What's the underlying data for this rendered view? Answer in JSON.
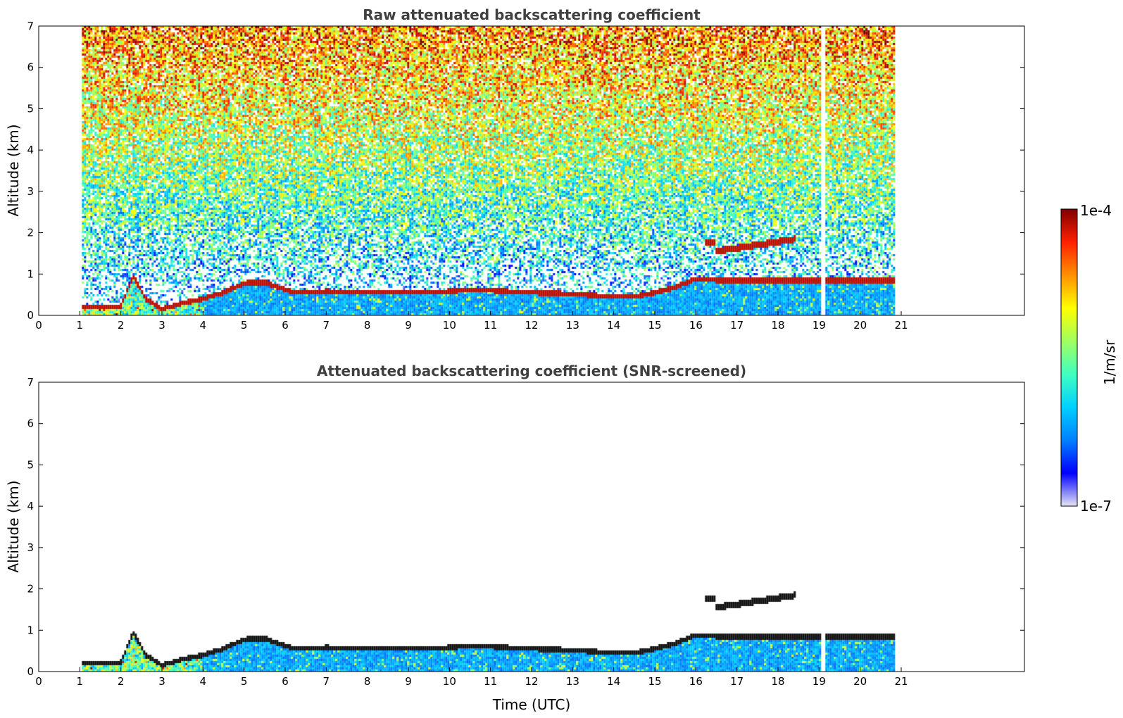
{
  "chart_data": [
    {
      "type": "heatmap",
      "title": "Raw attenuated backscattering coefficient",
      "xlabel": "",
      "ylabel": "Altitude (km)",
      "xlim": [
        0,
        24
      ],
      "ylim": [
        0,
        7
      ],
      "xticks": [
        0,
        1,
        2,
        3,
        4,
        5,
        6,
        7,
        8,
        9,
        10,
        11,
        12,
        13,
        14,
        15,
        16,
        17,
        18,
        19,
        20,
        21
      ],
      "yticks": [
        0,
        1,
        2,
        3,
        4,
        5,
        6,
        7
      ],
      "data_extent": {
        "t_start": 1.05,
        "t_end": 20.8
      },
      "gap_time": 19.1,
      "boundary_layer_top_km": [
        [
          1.05,
          0.22
        ],
        [
          1.5,
          0.2
        ],
        [
          2.0,
          0.22
        ],
        [
          2.3,
          0.95
        ],
        [
          2.6,
          0.4
        ],
        [
          3.0,
          0.15
        ],
        [
          3.5,
          0.3
        ],
        [
          4.0,
          0.4
        ],
        [
          4.5,
          0.55
        ],
        [
          5.0,
          0.78
        ],
        [
          5.5,
          0.8
        ],
        [
          5.8,
          0.7
        ],
        [
          6.2,
          0.55
        ],
        [
          7.0,
          0.58
        ],
        [
          8.0,
          0.55
        ],
        [
          9.0,
          0.55
        ],
        [
          10.0,
          0.58
        ],
        [
          10.5,
          0.62
        ],
        [
          11.0,
          0.6
        ],
        [
          12.0,
          0.55
        ],
        [
          13.0,
          0.52
        ],
        [
          14.0,
          0.45
        ],
        [
          14.5,
          0.45
        ],
        [
          15.0,
          0.55
        ],
        [
          15.5,
          0.68
        ],
        [
          16.0,
          0.88
        ],
        [
          16.5,
          0.85
        ]
      ],
      "elevated_layers": [
        {
          "t_start": 16.2,
          "t_end": 16.5,
          "alt_km": 1.78
        },
        {
          "t_start": 16.5,
          "t_end": 18.45,
          "alt_start_km": 1.55,
          "alt_end_km": 1.85
        }
      ]
    },
    {
      "type": "heatmap",
      "title": "Attenuated backscattering coefficient (SNR-screened)",
      "xlabel": "Time (UTC)",
      "ylabel": "Altitude (km)",
      "xlim": [
        0,
        24
      ],
      "ylim": [
        0,
        7
      ],
      "xticks": [
        0,
        1,
        2,
        3,
        4,
        5,
        6,
        7,
        8,
        9,
        10,
        11,
        12,
        13,
        14,
        15,
        16,
        17,
        18,
        19,
        20,
        21
      ],
      "yticks": [
        0,
        1,
        2,
        3,
        4,
        5,
        6,
        7
      ],
      "data_extent": {
        "t_start": 1.05,
        "t_end": 20.8
      },
      "gap_time": 19.1,
      "boundary_layer_top_km": [
        [
          1.05,
          0.22
        ],
        [
          1.5,
          0.2
        ],
        [
          2.0,
          0.22
        ],
        [
          2.3,
          0.95
        ],
        [
          2.6,
          0.4
        ],
        [
          3.0,
          0.15
        ],
        [
          3.5,
          0.3
        ],
        [
          4.0,
          0.4
        ],
        [
          4.5,
          0.55
        ],
        [
          5.0,
          0.78
        ],
        [
          5.5,
          0.8
        ],
        [
          5.8,
          0.7
        ],
        [
          6.2,
          0.55
        ],
        [
          7.0,
          0.58
        ],
        [
          8.0,
          0.55
        ],
        [
          9.0,
          0.55
        ],
        [
          10.0,
          0.58
        ],
        [
          10.5,
          0.62
        ],
        [
          11.0,
          0.6
        ],
        [
          12.0,
          0.55
        ],
        [
          13.0,
          0.52
        ],
        [
          14.0,
          0.45
        ],
        [
          14.5,
          0.45
        ],
        [
          15.0,
          0.55
        ],
        [
          15.5,
          0.68
        ],
        [
          16.0,
          0.88
        ],
        [
          16.5,
          0.85
        ]
      ],
      "elevated_layers": [
        {
          "t_start": 16.2,
          "t_end": 16.5,
          "alt_km": 1.78
        },
        {
          "t_start": 16.5,
          "t_end": 18.45,
          "alt_start_km": 1.55,
          "alt_end_km": 1.85
        }
      ]
    }
  ],
  "colorbar": {
    "label": "1/m/sr",
    "max_label": "1e-4",
    "min_label": "1e-7",
    "colormap": [
      "#e6e6f5",
      "#0000ff",
      "#0080ff",
      "#00d0ff",
      "#40ffc0",
      "#a0ff60",
      "#ffff00",
      "#ff9000",
      "#ff2000",
      "#800000"
    ]
  }
}
